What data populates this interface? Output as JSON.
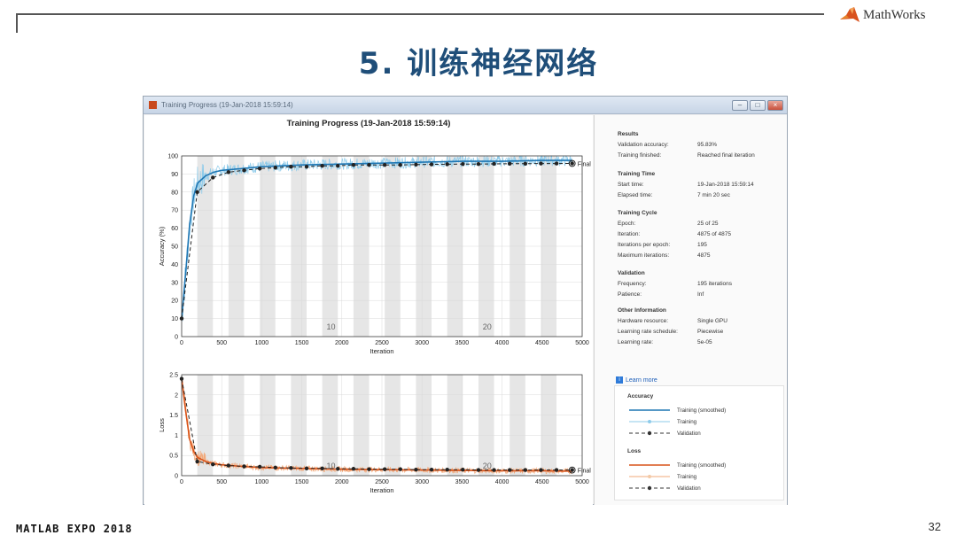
{
  "slide": {
    "brand": "MathWorks",
    "title": "5. 训练神经网络",
    "footer_event": "MATLAB EXPO 2018",
    "page_number": "32"
  },
  "window": {
    "title": "Training Progress (19-Jan-2018 15:59:14)",
    "buttons": [
      "minimize",
      "maximize",
      "close"
    ]
  },
  "plot_title": "Training Progress (19-Jan-2018 15:59:14)",
  "results_panel": {
    "sections": [
      {
        "heading": "Results",
        "rows": [
          {
            "key": "Validation accuracy:",
            "value": "95.83%"
          },
          {
            "key": "Training finished:",
            "value": "Reached final iteration"
          }
        ]
      },
      {
        "heading": "Training Time",
        "rows": [
          {
            "key": "Start time:",
            "value": "19-Jan-2018 15:59:14"
          },
          {
            "key": "Elapsed time:",
            "value": "7 min 20 sec"
          }
        ]
      },
      {
        "heading": "Training Cycle",
        "rows": [
          {
            "key": "Epoch:",
            "value": "25 of 25"
          },
          {
            "key": "Iteration:",
            "value": "4875 of 4875"
          },
          {
            "key": "Iterations per epoch:",
            "value": "195"
          },
          {
            "key": "Maximum iterations:",
            "value": "4875"
          }
        ]
      },
      {
        "heading": "Validation",
        "rows": [
          {
            "key": "Frequency:",
            "value": "195 iterations"
          },
          {
            "key": "Patience:",
            "value": "Inf"
          }
        ]
      },
      {
        "heading": "Other Information",
        "rows": [
          {
            "key": "Hardware resource:",
            "value": "Single GPU"
          },
          {
            "key": "Learning rate schedule:",
            "value": "Piecewise"
          },
          {
            "key": "Learning rate:",
            "value": "5e-05"
          }
        ]
      }
    ],
    "learn_more": "Learn more"
  },
  "legend": {
    "accuracy_heading": "Accuracy",
    "loss_heading": "Loss",
    "accuracy_items": [
      "Training (smoothed)",
      "Training",
      "Validation"
    ],
    "loss_items": [
      "Training (smoothed)",
      "Training",
      "Validation"
    ]
  },
  "colors": {
    "accuracy_smoothed": "#1f77b4",
    "accuracy_raw": "#8ecbea",
    "loss_smoothed": "#d95319",
    "loss_raw": "#f2a97a",
    "validation": "#000000",
    "epoch_band": "#e6e6e6",
    "slide_title": "#1f4e79"
  },
  "chart_data": [
    {
      "type": "line",
      "ylabel": "Accuracy (%)",
      "xlabel": "Iteration",
      "xlim": [
        0,
        5000
      ],
      "ylim": [
        0,
        100
      ],
      "xticks": [
        0,
        500,
        1000,
        1500,
        2000,
        2500,
        3000,
        3500,
        4000,
        4500,
        5000
      ],
      "yticks": [
        0,
        10,
        20,
        30,
        40,
        50,
        60,
        70,
        80,
        90,
        100
      ],
      "epoch_annotations": [
        {
          "label": "10"
        },
        {
          "label": "20"
        }
      ],
      "final_label": "Final",
      "series": [
        {
          "name": "Training (smoothed)",
          "x": [
            0,
            50,
            100,
            150,
            200,
            300,
            400,
            500,
            750,
            1000,
            1500,
            2000,
            2500,
            3000,
            3500,
            4000,
            4500,
            4875
          ],
          "y": [
            10,
            35,
            62,
            78,
            85,
            89,
            91,
            92,
            93,
            94,
            95,
            95.5,
            96,
            96.5,
            97,
            97,
            97.5,
            97.5
          ]
        },
        {
          "name": "Validation",
          "x": [
            0,
            195,
            390,
            585,
            780,
            975,
            1170,
            1365,
            1560,
            1755,
            1950,
            2145,
            2340,
            2535,
            2730,
            2925,
            3120,
            3315,
            3510,
            3705,
            3900,
            4095,
            4290,
            4485,
            4680,
            4875
          ],
          "y": [
            10,
            80,
            88,
            91,
            92,
            93,
            93.5,
            94,
            94,
            94.5,
            94.5,
            95,
            95,
            95,
            95,
            95.2,
            95.3,
            95.4,
            95.5,
            95.5,
            95.6,
            95.7,
            95.7,
            95.8,
            95.8,
            95.83
          ]
        }
      ]
    },
    {
      "type": "line",
      "ylabel": "Loss",
      "xlabel": "Iteration",
      "xlim": [
        0,
        5000
      ],
      "ylim": [
        0,
        2.5
      ],
      "xticks": [
        0,
        500,
        1000,
        1500,
        2000,
        2500,
        3000,
        3500,
        4000,
        4500,
        5000
      ],
      "yticks": [
        0,
        0.5,
        1,
        1.5,
        2,
        2.5
      ],
      "epoch_annotations": [
        {
          "label": "10"
        },
        {
          "label": "20"
        }
      ],
      "final_label": "Final",
      "series": [
        {
          "name": "Training (smoothed)",
          "x": [
            0,
            50,
            100,
            150,
            200,
            300,
            400,
            500,
            750,
            1000,
            1500,
            2000,
            2500,
            3000,
            3500,
            4000,
            4500,
            4875
          ],
          "y": [
            2.4,
            1.6,
            0.9,
            0.6,
            0.45,
            0.35,
            0.3,
            0.27,
            0.23,
            0.2,
            0.18,
            0.16,
            0.15,
            0.14,
            0.13,
            0.12,
            0.12,
            0.11
          ]
        },
        {
          "name": "Validation",
          "x": [
            0,
            195,
            390,
            585,
            780,
            975,
            1170,
            1365,
            1560,
            1755,
            1950,
            2145,
            2340,
            2535,
            2730,
            2925,
            3120,
            3315,
            3510,
            3705,
            3900,
            4095,
            4290,
            4485,
            4680,
            4875
          ],
          "y": [
            2.4,
            0.35,
            0.28,
            0.25,
            0.23,
            0.22,
            0.2,
            0.19,
            0.18,
            0.18,
            0.17,
            0.17,
            0.16,
            0.16,
            0.16,
            0.15,
            0.15,
            0.15,
            0.15,
            0.14,
            0.14,
            0.14,
            0.14,
            0.14,
            0.14,
            0.14
          ]
        }
      ]
    }
  ]
}
